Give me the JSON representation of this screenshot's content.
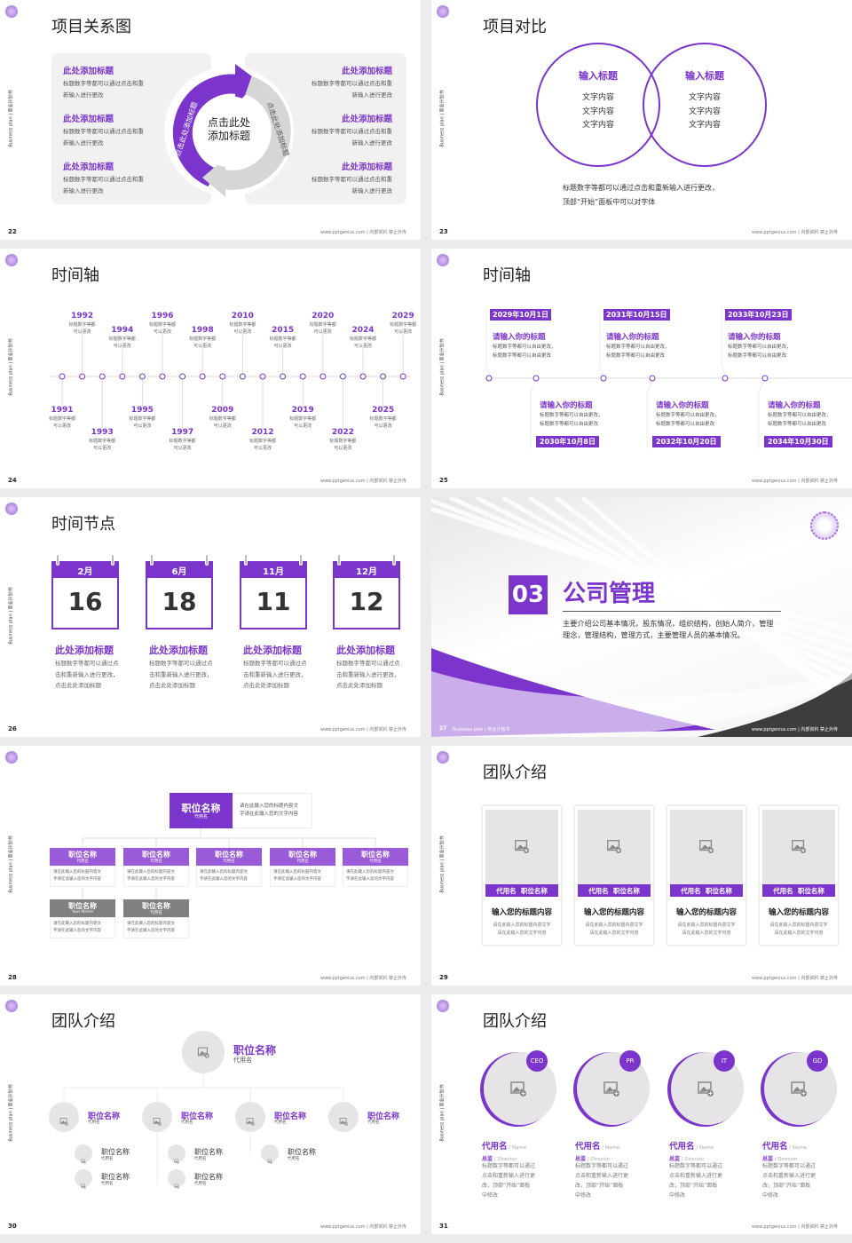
{
  "accent": "#7b35cc",
  "common": {
    "side": "Business plan | 商业计划书",
    "footer": "www.pptgenius.com | 内部资料 禁止外传",
    "side_short": "Business plan | 商业计划书"
  },
  "s22": {
    "page": "22",
    "title": "项目关系图",
    "center": "点击此处\n添加标题",
    "arc_left": "点击此处添加标题",
    "arc_right": "点击此处添加标题",
    "left": [
      {
        "title": "此处添加标题",
        "desc": "标题数字等都可以通过点击和重\n新输入进行更改"
      },
      {
        "title": "此处添加标题",
        "desc": "标题数字等都可以通过点击和重\n新输入进行更改"
      },
      {
        "title": "此处添加标题",
        "desc": "标题数字等都可以通过点击和重\n新输入进行更改"
      }
    ],
    "right": [
      {
        "title": "此处添加标题",
        "desc": "标题数字等都可以通过点击和重\n新输入进行更改"
      },
      {
        "title": "此处添加标题",
        "desc": "标题数字等都可以通过点击和重\n新输入进行更改"
      },
      {
        "title": "此处添加标题",
        "desc": "标题数字等都可以通过点击和重\n新输入进行更改"
      }
    ]
  },
  "s23": {
    "page": "23",
    "title": "项目对比",
    "circles": [
      {
        "title": "输入标题",
        "text": "文字内容\n文字内容\n文字内容"
      },
      {
        "title": "输入标题",
        "text": "文字内容\n文字内容\n文字内容"
      }
    ],
    "note": "标题数字等都可以通过点击和重新输入进行更改，\n顶部“开始”面板中可以对字体"
  },
  "s24": {
    "page": "24",
    "title": "时间轴",
    "desc": "标题数字等都\n可以更改",
    "years": [
      "1991",
      "1992",
      "1993",
      "1994",
      "1995",
      "1996",
      "1997",
      "1998",
      "2009",
      "2010",
      "2012",
      "2015",
      "2019",
      "2020",
      "2022",
      "2024",
      "2025",
      "2029"
    ]
  },
  "s25": {
    "page": "25",
    "title": "时间轴",
    "items": [
      {
        "date": "2029年10月1日",
        "title": "请输入你的标题",
        "desc": "标题数字等都可以自由更改，\n标题数字等都可以自由更改"
      },
      {
        "date": "2030年10月8日",
        "title": "请输入你的标题",
        "desc": "标题数字等都可以自由更改，\n标题数字等都可以自由更改"
      },
      {
        "date": "2031年10月15日",
        "title": "请输入你的标题",
        "desc": "标题数字等都可以自由更改，\n标题数字等都可以自由更改"
      },
      {
        "date": "2032年10月20日",
        "title": "请输入你的标题",
        "desc": "标题数字等都可以自由更改，\n标题数字等都可以自由更改"
      },
      {
        "date": "2033年10月23日",
        "title": "请输入你的标题",
        "desc": "标题数字等都可以自由更改，\n标题数字等都可以自由更改"
      },
      {
        "date": "2034年10月30日",
        "title": "请输入你的标题",
        "desc": "标题数字等都可以自由更改，\n标题数字等都可以自由更改"
      }
    ]
  },
  "s26": {
    "page": "26",
    "title": "时间节点",
    "items": [
      {
        "month": "2月",
        "day": "16",
        "title": "此处添加标题",
        "desc": "标题数字等都可以通过点\n击和重新输入进行更改，\n点击此处添加标题"
      },
      {
        "month": "6月",
        "day": "18",
        "title": "此处添加标题",
        "desc": "标题数字等都可以通过点\n击和重新输入进行更改，\n点击此处添加标题"
      },
      {
        "month": "11月",
        "day": "11",
        "title": "此处添加标题",
        "desc": "标题数字等都可以通过点\n击和重新输入进行更改，\n点击此处添加标题"
      },
      {
        "month": "12月",
        "day": "12",
        "title": "此处添加标题",
        "desc": "标题数字等都可以通过点\n击和重新输入进行更改，\n点击此处添加标题"
      }
    ]
  },
  "s27": {
    "page": "27",
    "num": "03",
    "title": "公司管理",
    "desc": "主要介绍公司基本情况，股东情况，组织结构，创始人简介，管理理念，管理结构，管理方式，主要管理人员的基本情况。",
    "footer_left": "Business plan | 商业计划书"
  },
  "s28": {
    "page": "28",
    "top": {
      "title": "职位名称",
      "sub": "代用名",
      "desc": "请在此输入您的标题内容文\n字请在此输入您的文字内容"
    },
    "row": [
      {
        "title": "职位名称",
        "sub": "代用名",
        "desc": "请在此输入您的标题内容文\n字请在此输入您的文字内容"
      },
      {
        "title": "职位名称",
        "sub": "代用名",
        "desc": "请在此输入您的标题内容文\n字请在此输入您的文字内容"
      },
      {
        "title": "职位名称",
        "sub": "代用名",
        "desc": "请在此输入您的标题内容文\n字请在此输入您的文字内容"
      },
      {
        "title": "职位名称",
        "sub": "代用名",
        "desc": "请在此输入您的标题内容文\n字请在此输入您的文字内容"
      },
      {
        "title": "职位名称",
        "sub": "代用名",
        "desc": "请在此输入您的标题内容文\n字请在此输入您的文字内容"
      }
    ],
    "gray": [
      {
        "title": "职位名称",
        "sub": "Your Name",
        "desc": "请在此输入您的标题内容文\n字请在此输入您的文字内容"
      },
      {
        "title": "职位名称",
        "sub": "代用名",
        "desc": "请在此输入您的标题内容文\n字请在此输入您的文字内容"
      }
    ]
  },
  "s29": {
    "page": "29",
    "title": "团队介绍",
    "cards": [
      {
        "band": "代用名  职位名称",
        "title": "输入您的标题内容",
        "desc": "请在此输入您的标题内容文字\n请在此输入您的文字内容"
      },
      {
        "band": "代用名  职位名称",
        "title": "输入您的标题内容",
        "desc": "请在此输入您的标题内容文字\n请在此输入您的文字内容"
      },
      {
        "band": "代用名  职位名称",
        "title": "输入您的标题内容",
        "desc": "请在此输入您的标题内容文字\n请在此输入您的文字内容"
      },
      {
        "band": "代用名  职位名称",
        "title": "输入您的标题内容",
        "desc": "请在此输入您的标题内容文字\n请在此输入您的文字内容"
      }
    ]
  },
  "s30": {
    "page": "30",
    "title": "团队介绍",
    "top": {
      "title": "职位名称",
      "sub": "代用名"
    },
    "mid": [
      {
        "title": "职位名称",
        "sub": "代用名"
      },
      {
        "title": "职位名称",
        "sub": "代用名"
      },
      {
        "title": "职位名称",
        "sub": "代用名"
      },
      {
        "title": "职位名称",
        "sub": "代用名"
      }
    ],
    "subs": [
      {
        "title": "职位名称",
        "sub": "代用名"
      },
      {
        "title": "职位名称",
        "sub": "代用名"
      },
      {
        "title": "职位名称",
        "sub": "代用名"
      },
      {
        "title": "职位名称",
        "sub": "代用名"
      },
      {
        "title": "职位名称",
        "sub": "代用名"
      }
    ]
  },
  "s31": {
    "page": "31",
    "title": "团队介绍",
    "people": [
      {
        "badge": "CEO",
        "name": "代用名",
        "name_en": " / Name",
        "role": "总监",
        "role_en": " / Director",
        "desc": "标题数字等都可以通过\n点击和重新输入进行更\n改，顶部“开始”面板\n中修改"
      },
      {
        "badge": "PR",
        "name": "代用名",
        "name_en": " / Name",
        "role": "总监",
        "role_en": " / Director",
        "desc": "标题数字等都可以通过\n点击和重新输入进行更\n改，顶部“开始”面板\n中修改"
      },
      {
        "badge": "IT",
        "name": "代用名",
        "name_en": " / Name",
        "role": "总监",
        "role_en": " / Director",
        "desc": "标题数字等都可以通过\n点击和重新输入进行更\n改，顶部“开始”面板\n中修改"
      },
      {
        "badge": "GD",
        "name": "代用名",
        "name_en": " / Name",
        "role": "总监",
        "role_en": " / Director",
        "desc": "标题数字等都可以通过\n点击和重新输入进行更\n改，顶部“开始”面板\n中修改"
      }
    ]
  }
}
